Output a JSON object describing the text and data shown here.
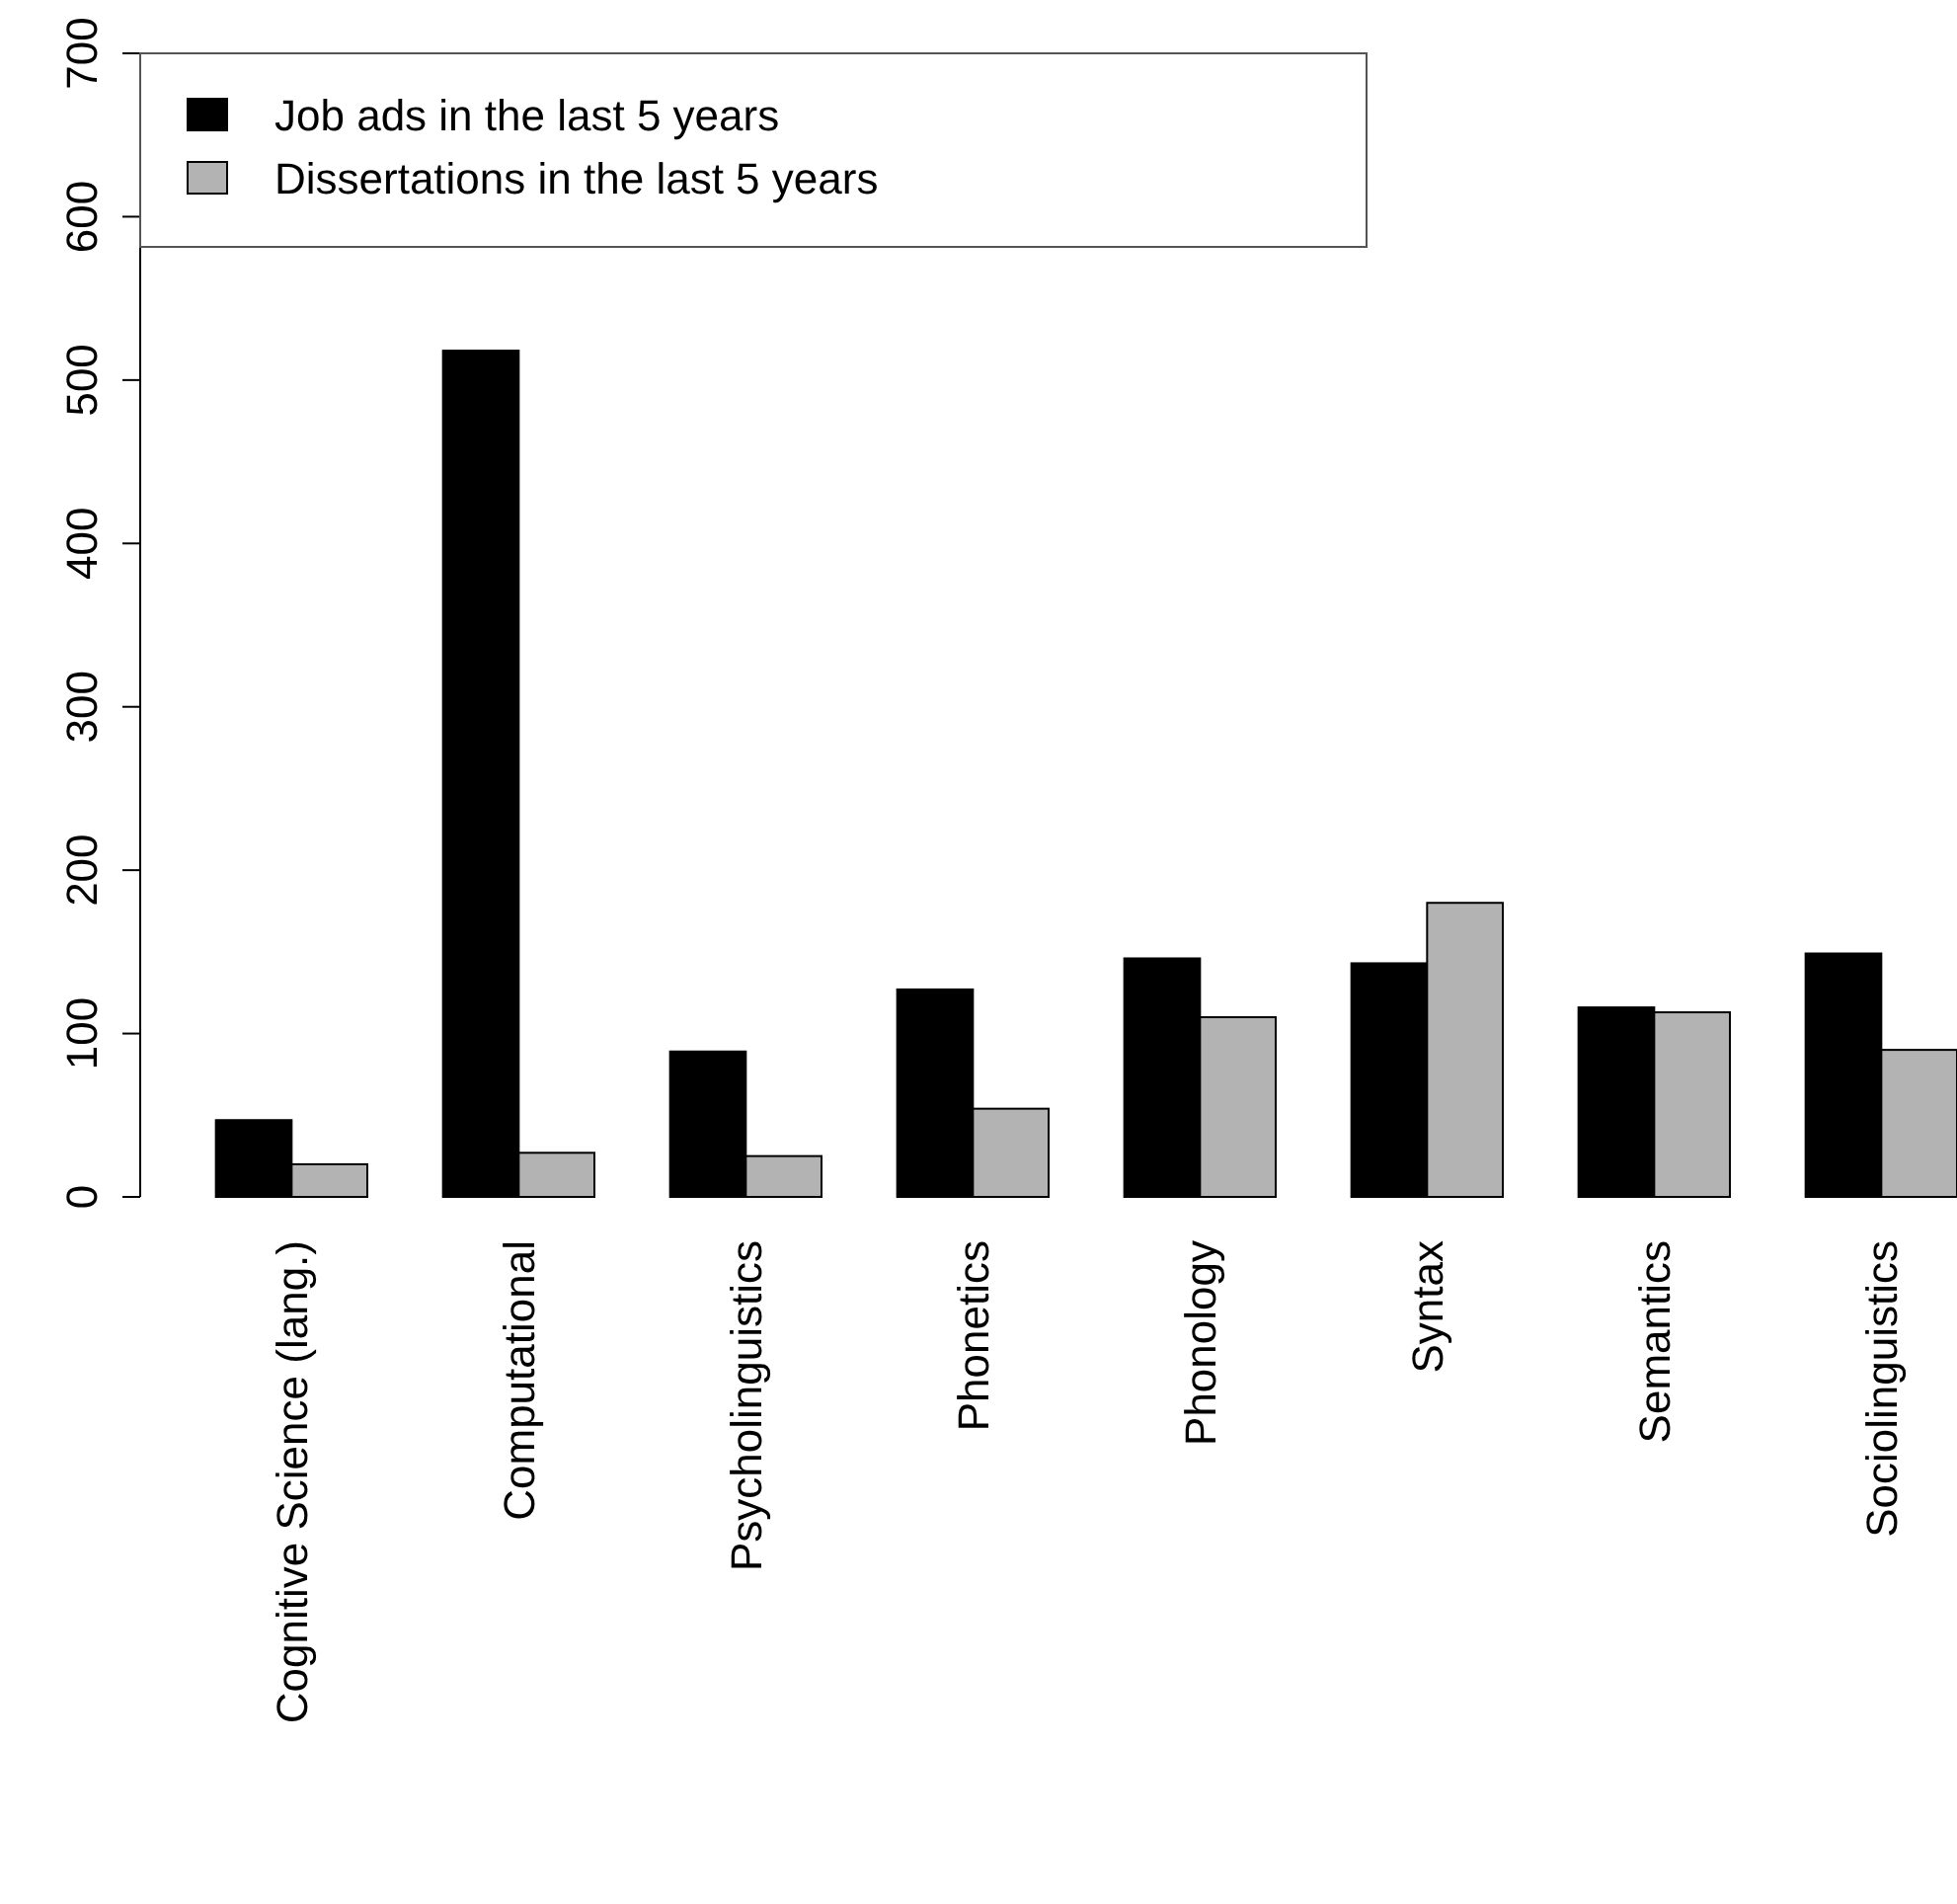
{
  "chart_data": {
    "type": "bar",
    "categories": [
      "Cognitive Science (lang.)",
      "Computational",
      "Psycholinguistics",
      "Phonetics",
      "Phonology",
      "Syntax",
      "Semantics",
      "Sociolinguistics"
    ],
    "series": [
      {
        "name": "Job ads in the last 5 years",
        "color": "#000000",
        "values": [
          47,
          518,
          89,
          127,
          146,
          143,
          116,
          149
        ]
      },
      {
        "name": "Dissertations in the last 5 years",
        "color": "#b3b3b3",
        "values": [
          20,
          27,
          25,
          54,
          110,
          180,
          113,
          90
        ]
      }
    ],
    "ylim": [
      0,
      700
    ],
    "yticks": [
      0,
      100,
      200,
      300,
      400,
      500,
      600,
      700
    ],
    "legend": "top left",
    "grid": false
  }
}
